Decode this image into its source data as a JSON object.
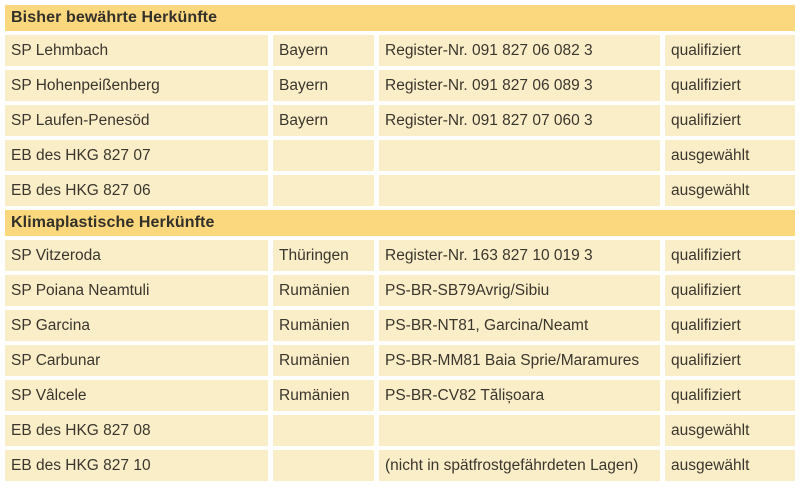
{
  "colors": {
    "page_bg": "#ffffff",
    "section_header_bg": "#fbd77d",
    "section_header_text": "#33302a",
    "cell_bg": "#faeec9",
    "cell_text": "#3a362c"
  },
  "table": {
    "columns": [
      "name",
      "region",
      "register",
      "status"
    ],
    "sections": [
      {
        "header": "Bisher bewährte Herkünfte",
        "rows": [
          {
            "name": "SP Lehmbach",
            "region": "Bayern",
            "register": "Register-Nr. 091 827 06 082 3",
            "status": "qualifiziert"
          },
          {
            "name": "SP Hohenpeißenberg",
            "region": "Bayern",
            "register": "Register-Nr. 091 827 06 089 3",
            "status": "qualifiziert"
          },
          {
            "name": "SP Laufen-Penesöd",
            "region": "Bayern",
            "register": "Register-Nr. 091 827 07 060 3",
            "status": "qualifiziert"
          },
          {
            "name": "EB des HKG 827 07",
            "region": "",
            "register": "",
            "status": "ausgewählt"
          },
          {
            "name": "EB des HKG 827 06",
            "region": "",
            "register": "",
            "status": "ausgewählt"
          }
        ]
      },
      {
        "header": "Klimaplastische Herkünfte",
        "rows": [
          {
            "name": "SP Vitzeroda",
            "region": "Thüringen",
            "register": "Register-Nr. 163 827 10 019 3",
            "status": "qualifiziert"
          },
          {
            "name": "SP Poiana Neamtuli",
            "region": "Rumänien",
            "register": "PS-BR-SB79Avrig/Sibiu",
            "status": "qualifiziert"
          },
          {
            "name": "SP Garcina",
            "region": "Rumänien",
            "register": "PS-BR-NT81, Garcina/Neamt",
            "status": "qualifiziert"
          },
          {
            "name": "SP Carbunar",
            "region": "Rumänien",
            "register": "PS-BR-MM81 Baia Sprie/Maramures",
            "status": "qualifiziert"
          },
          {
            "name": "SP Vâlcele",
            "region": "Rumänien",
            "register": "PS-BR-CV82 Tălișoara",
            "status": "qualifiziert"
          },
          {
            "name": "EB des HKG 827 08",
            "region": "",
            "register": "",
            "status": "ausgewählt"
          },
          {
            "name": "EB des HKG 827 10",
            "region": "",
            "register": "(nicht in spätfrostgefährdeten Lagen)",
            "status": "ausgewählt"
          }
        ]
      }
    ]
  }
}
